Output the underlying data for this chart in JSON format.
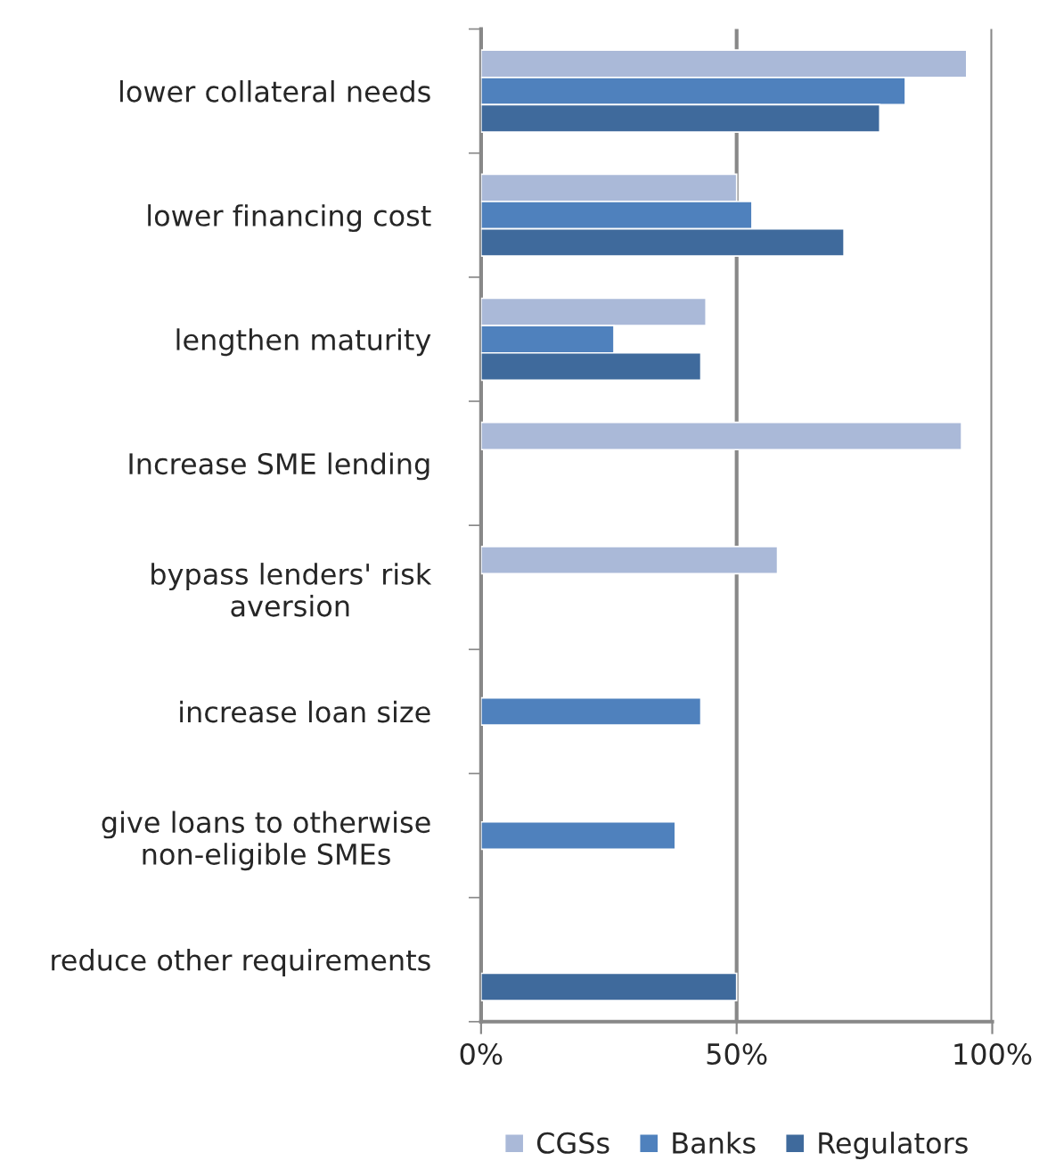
{
  "chart_data": {
    "type": "bar",
    "orientation": "horizontal",
    "categories": [
      "lower collateral needs",
      "lower financing cost",
      "lengthen maturity",
      "Increase SME lending",
      "bypass lenders' risk\naversion",
      "increase loan size",
      "give loans to otherwise\nnon-eligible SMEs",
      "reduce other requirements"
    ],
    "series": [
      {
        "name": "CGSs",
        "color": "#aab9d8",
        "values": [
          95,
          50,
          44,
          94,
          58,
          null,
          null,
          null
        ]
      },
      {
        "name": "Banks",
        "color": "#4f81bd",
        "values": [
          83,
          53,
          26,
          null,
          null,
          43,
          38,
          null
        ]
      },
      {
        "name": "Regulators",
        "color": "#3f6a9c",
        "values": [
          78,
          71,
          43,
          null,
          null,
          null,
          null,
          50
        ]
      }
    ],
    "xlim": [
      0,
      100
    ],
    "xticks": [
      {
        "value": 0,
        "label": "0%"
      },
      {
        "value": 50,
        "label": "50%"
      },
      {
        "value": 100,
        "label": "100%"
      }
    ],
    "grid": "x",
    "legend": "bottom"
  }
}
